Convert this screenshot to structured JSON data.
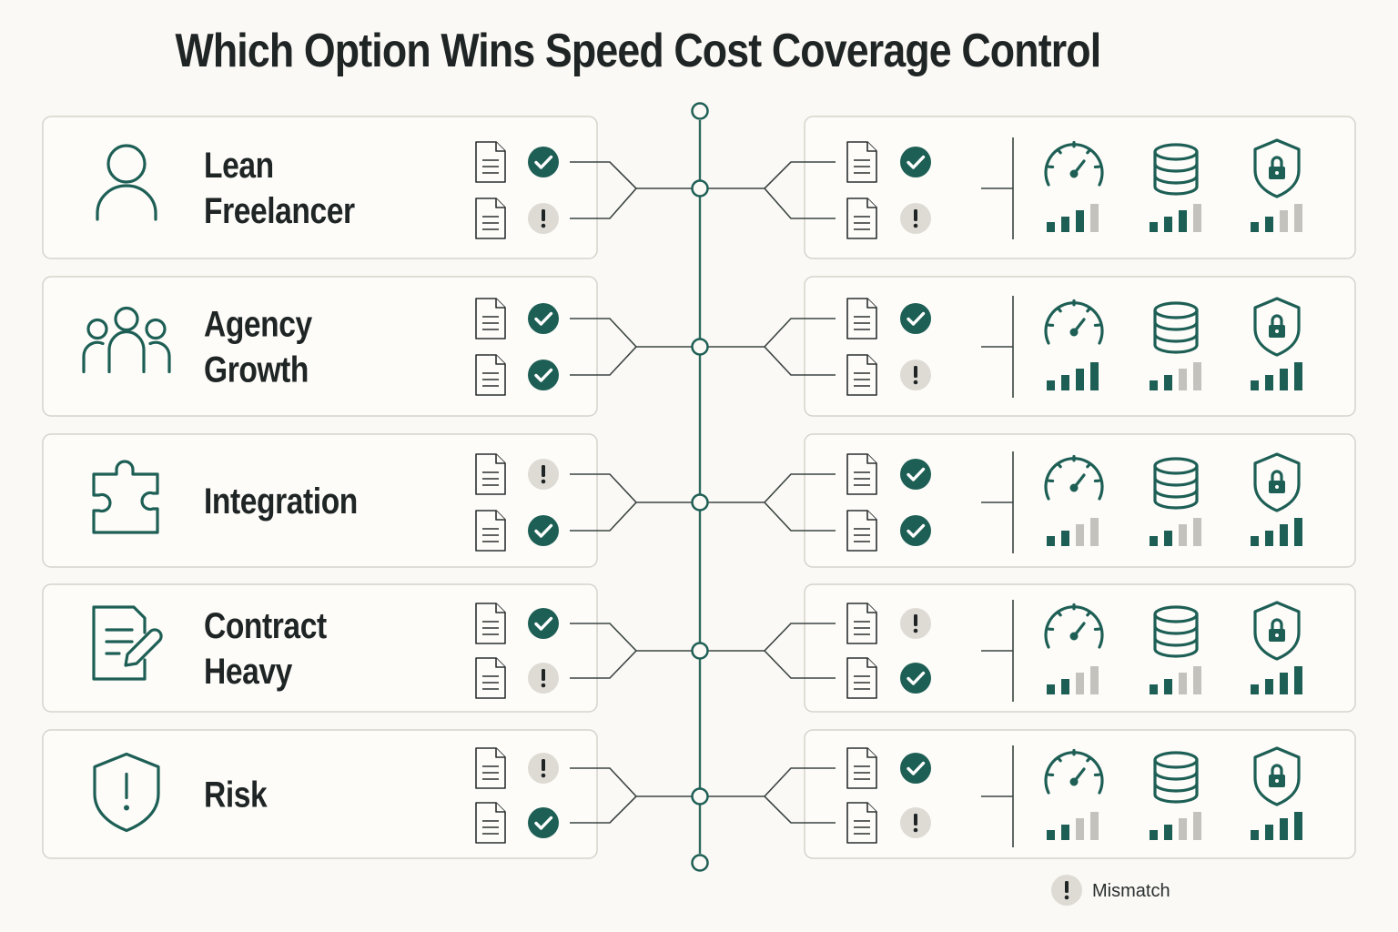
{
  "title": "Which Option Wins Speed Cost Coverage Control",
  "colors": {
    "accent": "#1e5f55",
    "check_fill": "#1e5f55",
    "warn_fill": "#dedbd4",
    "bar_on": "#1e5f55",
    "bar_off": "#c4c2bc",
    "panel_border": "#d6d3cc"
  },
  "metric_icons": [
    "speedometer-icon",
    "database-icon",
    "shield-lock-icon"
  ],
  "rows": [
    {
      "label_lines": [
        "Lean",
        "Freelancer"
      ],
      "icon": "person-icon",
      "left_status": [
        "check",
        "warn"
      ],
      "right_status": [
        "check",
        "warn"
      ],
      "metrics": {
        "speed": 3,
        "cost": 3,
        "control": 2
      }
    },
    {
      "label_lines": [
        "Agency",
        "Growth"
      ],
      "icon": "group-icon",
      "left_status": [
        "check",
        "check"
      ],
      "right_status": [
        "check",
        "warn"
      ],
      "metrics": {
        "speed": 4,
        "cost": 2,
        "control": 4
      }
    },
    {
      "label_lines": [
        "Integration"
      ],
      "icon": "puzzle-icon",
      "left_status": [
        "warn",
        "check"
      ],
      "right_status": [
        "check",
        "check"
      ],
      "metrics": {
        "speed": 2,
        "cost": 2,
        "control": 4
      }
    },
    {
      "label_lines": [
        "Contract",
        "Heavy"
      ],
      "icon": "contract-edit-icon",
      "left_status": [
        "check",
        "warn"
      ],
      "right_status": [
        "warn",
        "check"
      ],
      "metrics": {
        "speed": 2,
        "cost": 2,
        "control": 4
      }
    },
    {
      "label_lines": [
        "Risk"
      ],
      "icon": "shield-alert-icon",
      "left_status": [
        "warn",
        "check"
      ],
      "right_status": [
        "check",
        "warn"
      ],
      "metrics": {
        "speed": 2,
        "cost": 2,
        "control": 4
      }
    }
  ],
  "legend": {
    "icon": "warning-badge-icon",
    "label": "Mismatch"
  }
}
